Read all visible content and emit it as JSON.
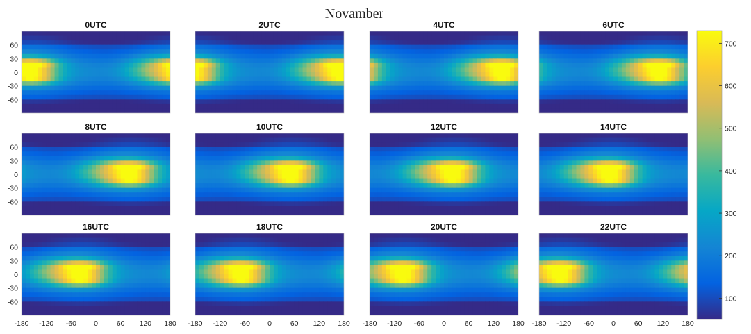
{
  "chart_data": {
    "type": "heatmap",
    "title": "Novamber",
    "panels": [
      {
        "label": "0UTC",
        "hour": 0
      },
      {
        "label": "2UTC",
        "hour": 2
      },
      {
        "label": "4UTC",
        "hour": 4
      },
      {
        "label": "6UTC",
        "hour": 6
      },
      {
        "label": "8UTC",
        "hour": 8
      },
      {
        "label": "10UTC",
        "hour": 10
      },
      {
        "label": "12UTC",
        "hour": 12
      },
      {
        "label": "14UTC",
        "hour": 14
      },
      {
        "label": "16UTC",
        "hour": 16
      },
      {
        "label": "18UTC",
        "hour": 18
      },
      {
        "label": "20UTC",
        "hour": 20
      },
      {
        "label": "22UTC",
        "hour": 22
      }
    ],
    "x_ticks": [
      "-180",
      "-120",
      "-60",
      "0",
      "60",
      "120",
      "180"
    ],
    "y_ticks": [
      "60",
      "30",
      "0",
      "-30",
      "-60"
    ],
    "xlim": [
      -180,
      180
    ],
    "ylim": [
      -90,
      90
    ],
    "colorbar": {
      "ticks": [
        "700",
        "600",
        "500",
        "400",
        "300",
        "200",
        "100"
      ],
      "range": [
        50,
        730
      ],
      "colormap": "parula"
    },
    "colormap_stops": [
      "#352a87",
      "#0363e1",
      "#1485d4",
      "#06a7c6",
      "#38b99e",
      "#92bf73",
      "#d9ba56",
      "#fcce2e",
      "#f9fb0e"
    ]
  }
}
